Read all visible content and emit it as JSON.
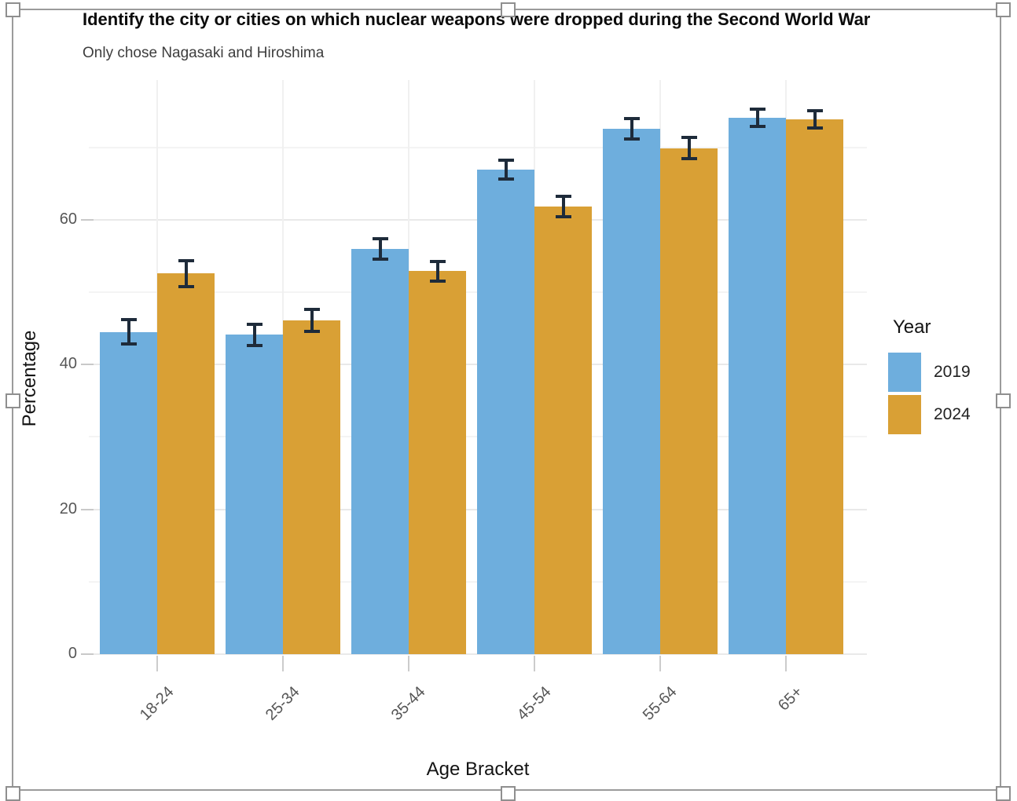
{
  "chart_data": {
    "type": "bar",
    "title": "Identify the city or cities on which nuclear weapons were dropped during the Second World War",
    "subtitle": "Only chose Nagasaki and Hiroshima",
    "xlabel": "Age Bracket",
    "ylabel": "Percentage",
    "categories": [
      "18-24",
      "25-34",
      "35-44",
      "45-54",
      "55-64",
      "65+"
    ],
    "series": [
      {
        "name": "2019",
        "color": "#6EAEDD",
        "values": [
          44.5,
          44.1,
          56.0,
          66.9,
          72.6,
          74.1
        ],
        "error": [
          1.8,
          1.6,
          1.5,
          1.4,
          1.5,
          1.3
        ]
      },
      {
        "name": "2024",
        "color": "#D9A035",
        "values": [
          52.6,
          46.1,
          52.9,
          61.8,
          69.9,
          73.9
        ],
        "error": [
          1.9,
          1.6,
          1.5,
          1.5,
          1.6,
          1.3
        ]
      }
    ],
    "ylim": [
      0,
      79.3
    ],
    "yticks": [
      0,
      20,
      40,
      60
    ],
    "yticks_minor": [
      10,
      30,
      50,
      70
    ],
    "legend_title": "Year",
    "legend_position": "right",
    "grid": true,
    "error_bar_color": "#1E2B3A"
  }
}
